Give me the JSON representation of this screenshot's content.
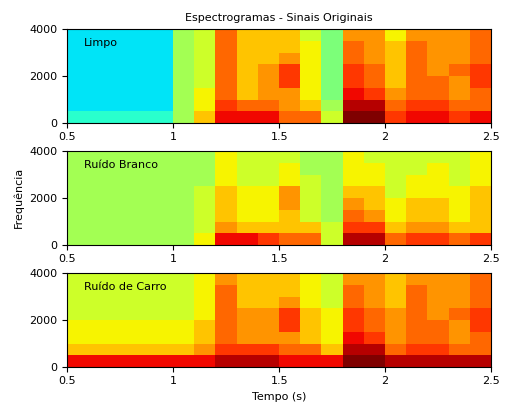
{
  "chart_data": [
    {
      "type": "heatmap",
      "title": "Espectrogramas - Sinais Originais",
      "annotation": "Limpo",
      "xlim": [
        0.5,
        2.5
      ],
      "xticks": [
        0.5,
        1,
        1.5,
        2,
        2.5
      ],
      "ylim": [
        0,
        4000
      ],
      "yticks": [
        0,
        2000,
        4000
      ],
      "clim": [
        0,
        10
      ],
      "cells": [
        [
          4,
          4,
          4,
          4,
          4,
          5.5,
          7,
          9,
          9,
          9,
          8,
          8,
          6,
          10,
          10,
          8.5,
          9,
          9,
          8.5,
          9
        ],
        [
          3.5,
          3.5,
          3.5,
          3.5,
          3.5,
          5.5,
          6.5,
          8.5,
          8,
          8,
          7.5,
          7,
          5.5,
          9.5,
          9.5,
          8,
          8.5,
          8.5,
          8,
          8
        ],
        [
          3.5,
          3.5,
          3.5,
          3.5,
          3.5,
          5.5,
          6.5,
          8,
          7,
          7.5,
          7.5,
          6.5,
          5,
          9,
          8.5,
          7.5,
          8,
          8,
          7.5,
          8
        ],
        [
          3.5,
          3.5,
          3.5,
          3.5,
          3.5,
          5.5,
          6,
          8,
          7,
          7.5,
          8.5,
          6.5,
          5,
          8.5,
          8,
          7,
          8,
          8,
          7.5,
          8.5
        ],
        [
          3.5,
          3.5,
          3.5,
          3.5,
          3.5,
          5.5,
          6,
          8,
          7,
          7.5,
          8.5,
          6.5,
          5,
          8.5,
          8,
          7,
          8,
          7.5,
          8,
          8.5
        ],
        [
          3.5,
          3.5,
          3.5,
          3.5,
          3.5,
          5.5,
          6,
          8,
          7,
          7,
          7.5,
          6.5,
          5,
          8,
          7.5,
          7,
          8,
          7.5,
          7.5,
          8
        ],
        [
          3.5,
          3.5,
          3.5,
          3.5,
          3.5,
          5.5,
          6,
          8,
          7,
          7,
          7,
          6.5,
          5,
          8,
          7.5,
          7,
          8,
          7.5,
          7.5,
          8
        ],
        [
          3.5,
          3.5,
          3.5,
          3.5,
          3.5,
          5.5,
          6,
          8,
          7,
          7,
          7,
          6,
          5,
          7.5,
          7.5,
          6.5,
          7.5,
          7.5,
          7.5,
          8
        ]
      ]
    },
    {
      "type": "heatmap",
      "y_label": "Frequência",
      "annotation": "Ruído Branco",
      "xlim": [
        0.5,
        2.5
      ],
      "xticks": [
        0.5,
        1,
        1.5,
        2,
        2.5
      ],
      "ylim": [
        0,
        4000
      ],
      "yticks": [
        0,
        2000,
        4000
      ],
      "clim": [
        0,
        10
      ],
      "cells": [
        [
          5.5,
          5.5,
          5.5,
          5.5,
          5.5,
          5.5,
          6.5,
          9,
          9,
          8.5,
          8,
          8,
          6,
          9.5,
          9.5,
          8,
          8.5,
          8.5,
          8,
          8.5
        ],
        [
          5.5,
          5.5,
          5.5,
          5.5,
          5.5,
          5.5,
          6,
          7.5,
          7,
          7,
          7,
          7,
          6,
          8.5,
          8.5,
          7,
          7.5,
          7.5,
          7,
          7
        ],
        [
          5.5,
          5.5,
          5.5,
          5.5,
          5.5,
          5.5,
          6,
          7,
          6.5,
          6.5,
          7,
          6,
          5.5,
          8,
          7.5,
          6.5,
          7,
          7,
          6.5,
          7
        ],
        [
          5.5,
          5.5,
          5.5,
          5.5,
          5.5,
          5.5,
          6,
          7,
          6.5,
          6.5,
          7.5,
          6,
          5.5,
          7.5,
          7,
          6.5,
          7,
          7,
          6.5,
          7
        ],
        [
          5.5,
          5.5,
          5.5,
          5.5,
          5.5,
          5.5,
          6,
          7,
          6.5,
          6.5,
          7.5,
          6,
          5.5,
          7,
          7,
          6,
          6.5,
          6.5,
          6.5,
          7
        ],
        [
          5.5,
          5.5,
          5.5,
          5.5,
          5.5,
          5.5,
          5.5,
          6.5,
          6,
          6,
          6.5,
          6,
          5.5,
          6.5,
          6.5,
          6,
          6.5,
          6.5,
          6,
          6.5
        ],
        [
          5.5,
          5.5,
          5.5,
          5.5,
          5.5,
          5.5,
          5.5,
          6.5,
          6,
          6,
          6.5,
          5.5,
          5.5,
          6.5,
          6.5,
          6,
          6,
          6.5,
          6,
          6.5
        ],
        [
          5.5,
          5.5,
          5.5,
          5.5,
          5.5,
          5.5,
          5.5,
          6.5,
          6,
          6,
          6,
          5.5,
          5.5,
          6.5,
          6,
          6,
          6,
          6,
          6,
          6.5
        ]
      ]
    },
    {
      "type": "heatmap",
      "x_label": "Tempo (s)",
      "annotation": "Ruído de Carro",
      "xlim": [
        0.5,
        2.5
      ],
      "xticks": [
        0.5,
        1,
        1.5,
        2,
        2.5
      ],
      "ylim": [
        0,
        4000
      ],
      "yticks": [
        0,
        2000,
        4000
      ],
      "clim": [
        0,
        10
      ],
      "cells": [
        [
          9,
          9,
          9,
          9,
          9,
          9,
          9,
          9.5,
          9.5,
          9.5,
          9,
          9,
          9,
          10,
          10,
          9.5,
          9.5,
          9.5,
          9.5,
          9.5
        ],
        [
          7,
          7,
          7,
          7,
          7,
          7,
          7.5,
          8.5,
          8.5,
          8.5,
          8,
          8,
          7,
          9.5,
          9.5,
          8,
          8.5,
          8.5,
          8,
          8
        ],
        [
          6.5,
          6.5,
          6.5,
          6.5,
          6.5,
          6.5,
          7,
          8,
          7.5,
          7.5,
          7.5,
          7,
          6.5,
          9,
          8.5,
          7.5,
          8,
          8,
          7.5,
          8
        ],
        [
          6.5,
          6.5,
          6.5,
          6.5,
          6.5,
          6.5,
          7,
          8,
          7.5,
          7.5,
          8.5,
          7,
          6.5,
          8.5,
          8,
          7.5,
          8,
          8,
          7.5,
          8.5
        ],
        [
          6,
          6,
          6,
          6,
          6,
          6,
          6.5,
          8,
          7.5,
          7.5,
          8.5,
          7,
          6.5,
          8.5,
          8,
          7.5,
          8,
          7.5,
          8,
          8.5
        ],
        [
          6,
          6,
          6,
          6,
          6,
          6,
          6.5,
          8,
          7,
          7,
          7.5,
          6.5,
          6,
          8,
          7.5,
          7,
          8,
          7.5,
          7.5,
          8
        ],
        [
          6,
          6,
          6,
          6,
          6,
          6,
          6.5,
          8,
          7,
          7,
          7,
          6.5,
          6,
          8,
          7.5,
          7,
          8,
          7.5,
          7.5,
          8
        ],
        [
          6,
          6,
          6,
          6,
          6,
          6,
          6.5,
          7.5,
          7,
          7,
          7,
          6.5,
          6,
          7.5,
          7.5,
          7,
          7.5,
          7.5,
          7.5,
          8
        ]
      ]
    }
  ]
}
